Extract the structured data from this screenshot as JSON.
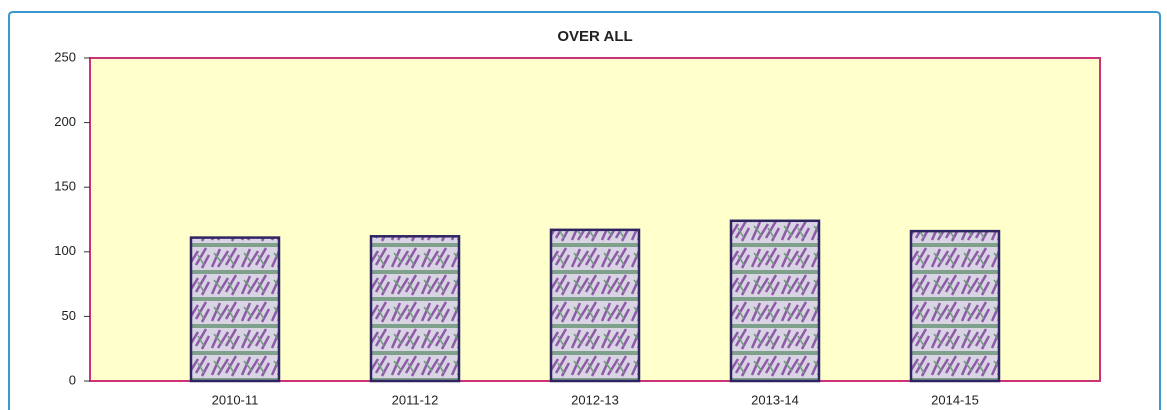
{
  "chart_data": {
    "type": "bar",
    "title": "OVER ALL",
    "categories": [
      "2010-11",
      "2011-12",
      "2012-13",
      "2013-14",
      "2014-15"
    ],
    "values": [
      111,
      112,
      117,
      124,
      116
    ],
    "color": "#9a8fc4",
    "ylim": [
      0,
      250
    ],
    "yticks": [
      0,
      50,
      100,
      150,
      200,
      250
    ],
    "grid": false
  }
}
